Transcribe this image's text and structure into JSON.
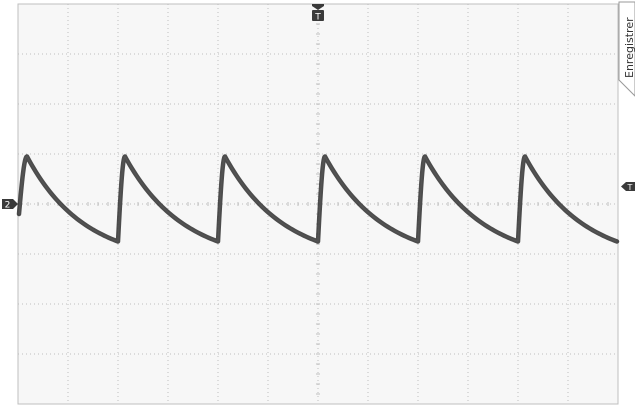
{
  "side_menu": {
    "label": "Enregistrer"
  },
  "markers": {
    "trigger_top": "T",
    "trigger_level": "T",
    "channel": "2"
  },
  "colors": {
    "background": "#f7f7f7",
    "grid": "#bfbfbf",
    "trace": "#2e2e2e",
    "marker": "#3a3a3a"
  },
  "chart_data": {
    "type": "line",
    "grid": true,
    "divisions": {
      "x": 12,
      "y": 8
    },
    "xlim": [
      0,
      12
    ],
    "ylim": [
      -4,
      4
    ],
    "series": [
      {
        "waveform": "sawtooth-exponential-decay",
        "x": [
          0.02,
          0.18,
          2.0,
          2.14,
          4.0,
          4.14,
          6.0,
          6.14,
          8.0,
          8.14,
          10.0,
          10.14,
          11.98
        ],
        "values": [
          -0.2,
          0.95,
          -0.75,
          0.95,
          -0.75,
          0.95,
          -0.75,
          0.95,
          -0.75,
          0.95,
          -0.75,
          0.95,
          -0.75
        ]
      }
    ]
  }
}
